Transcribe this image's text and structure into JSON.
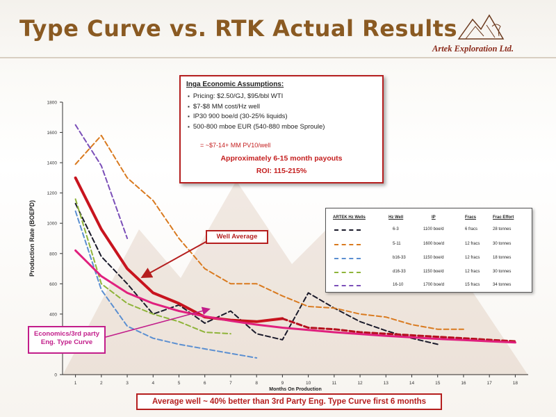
{
  "header": {
    "title": "Type Curve vs. RTK Actual Results",
    "logo_text": "Artek Exploration Ltd."
  },
  "assumptions": {
    "title": "Inga Economic Assumptions:",
    "items": [
      "Pricing: $2.50/GJ, $95/bbl WTI",
      "$7-$8 MM cost/Hz well",
      "IP30 900 boe/d (30-25% liquids)",
      "500-800 mboe EUR (540-880 mboe Sproule)"
    ],
    "pv10": "= ~$7-14+ MM PV10/well",
    "payout": "Approximately 6-15 month payouts",
    "roi": "ROI: 115-215%"
  },
  "well_table": {
    "headers": [
      "ARTEK Hz Wells",
      "Hz Well",
      "IP",
      "Fracs",
      "Frac Effort"
    ],
    "rows": [
      {
        "color": "#1a1a2a",
        "well": "6-3",
        "ip": "1100 boe/d",
        "fracs": "6 fracs",
        "effort": "28 tonnes"
      },
      {
        "color": "#d97a1f",
        "well": "5-11",
        "ip": "1600 boe/d",
        "fracs": "12 fracs",
        "effort": "30 tonnes"
      },
      {
        "color": "#5b8fd1",
        "well": "b16-33",
        "ip": "1150 boe/d",
        "fracs": "12 fracs",
        "effort": "18 tonnes"
      },
      {
        "color": "#8fb43a",
        "well": "d16-33",
        "ip": "1150 boe/d",
        "fracs": "12 fracs",
        "effort": "30 tonnes"
      },
      {
        "color": "#7b4fb8",
        "well": "16-10",
        "ip": "1700 boe/d",
        "fracs": "15 fracs",
        "effort": "34 tonnes"
      }
    ]
  },
  "callouts": {
    "well_average": "Well Average",
    "econ_line1": "Economics/3rd party",
    "econ_line2": "Eng. Type Curve"
  },
  "bottom_note": "Average well ~ 40% better than 3rd Party Eng. Type Curve first 6 months",
  "chart_data": {
    "type": "line",
    "xlabel": "Months On Production",
    "ylabel": "Production Rate (BOEPD)",
    "xlim": [
      0.5,
      18.5
    ],
    "ylim": [
      0,
      1800
    ],
    "x_ticks": [
      1,
      2,
      3,
      4,
      5,
      6,
      7,
      8,
      9,
      10,
      11,
      12,
      13,
      14,
      15,
      16,
      17,
      18
    ],
    "y_ticks": [
      0,
      200,
      400,
      600,
      800,
      1000,
      1200,
      1400,
      1600,
      1800
    ],
    "y_tick_labels": [
      "0",
      "",
      "400",
      "600",
      "800",
      "1000",
      "1200",
      "1400",
      "1600",
      "1800"
    ],
    "series": [
      {
        "name": "6-3",
        "color": "#1a1a2a",
        "dash": true,
        "width": 2,
        "x": [
          1,
          2,
          3,
          4,
          5,
          6,
          7,
          8,
          9,
          10,
          11,
          12,
          13,
          14,
          15
        ],
        "y": [
          1130,
          780,
          600,
          400,
          460,
          340,
          420,
          270,
          230,
          540,
          440,
          350,
          290,
          240,
          200
        ]
      },
      {
        "name": "5-11",
        "color": "#d97a1f",
        "dash": true,
        "width": 2,
        "x": [
          1,
          2,
          3,
          4,
          5,
          6,
          7,
          8,
          9,
          10,
          11,
          12,
          13,
          14,
          15,
          16
        ],
        "y": [
          1390,
          1580,
          1300,
          1150,
          900,
          700,
          600,
          600,
          520,
          450,
          440,
          400,
          380,
          330,
          300,
          300
        ]
      },
      {
        "name": "b16-33",
        "color": "#5b8fd1",
        "dash": true,
        "width": 2,
        "x": [
          1,
          2,
          3,
          4,
          5,
          6,
          7,
          8
        ],
        "y": [
          1080,
          560,
          320,
          240,
          200,
          170,
          140,
          110
        ]
      },
      {
        "name": "d16-33",
        "color": "#8fb43a",
        "dash": true,
        "width": 2,
        "x": [
          1,
          2,
          3,
          4,
          5,
          6,
          7
        ],
        "y": [
          1160,
          600,
          470,
          400,
          350,
          280,
          270
        ]
      },
      {
        "name": "16-10",
        "color": "#7b4fb8",
        "dash": true,
        "width": 2,
        "x": [
          1,
          2,
          3
        ],
        "y": [
          1650,
          1380,
          900
        ]
      },
      {
        "name": "Well Average",
        "color": "#c8141e",
        "dash": false,
        "width": 4,
        "x": [
          1,
          2,
          3,
          4,
          5,
          6,
          7,
          8,
          9
        ],
        "y": [
          1300,
          960,
          700,
          540,
          470,
          380,
          360,
          350,
          370
        ]
      },
      {
        "name": "Well Average (cont.)",
        "color": "#b5101e",
        "dash": true,
        "width": 3,
        "x": [
          9,
          10,
          11,
          12,
          13,
          14,
          15,
          16,
          17,
          18
        ],
        "y": [
          370,
          310,
          300,
          280,
          270,
          260,
          250,
          240,
          230,
          220
        ]
      },
      {
        "name": "Economics/3rd party Eng. Type Curve",
        "color": "#e0207e",
        "dash": false,
        "width": 3,
        "x": [
          1,
          2,
          3,
          4,
          5,
          6,
          7,
          8,
          9,
          10,
          11,
          12,
          13,
          14,
          15,
          16,
          17,
          18
        ],
        "y": [
          820,
          650,
          540,
          470,
          420,
          385,
          355,
          330,
          310,
          295,
          280,
          268,
          256,
          246,
          236,
          228,
          220,
          212
        ]
      }
    ]
  }
}
